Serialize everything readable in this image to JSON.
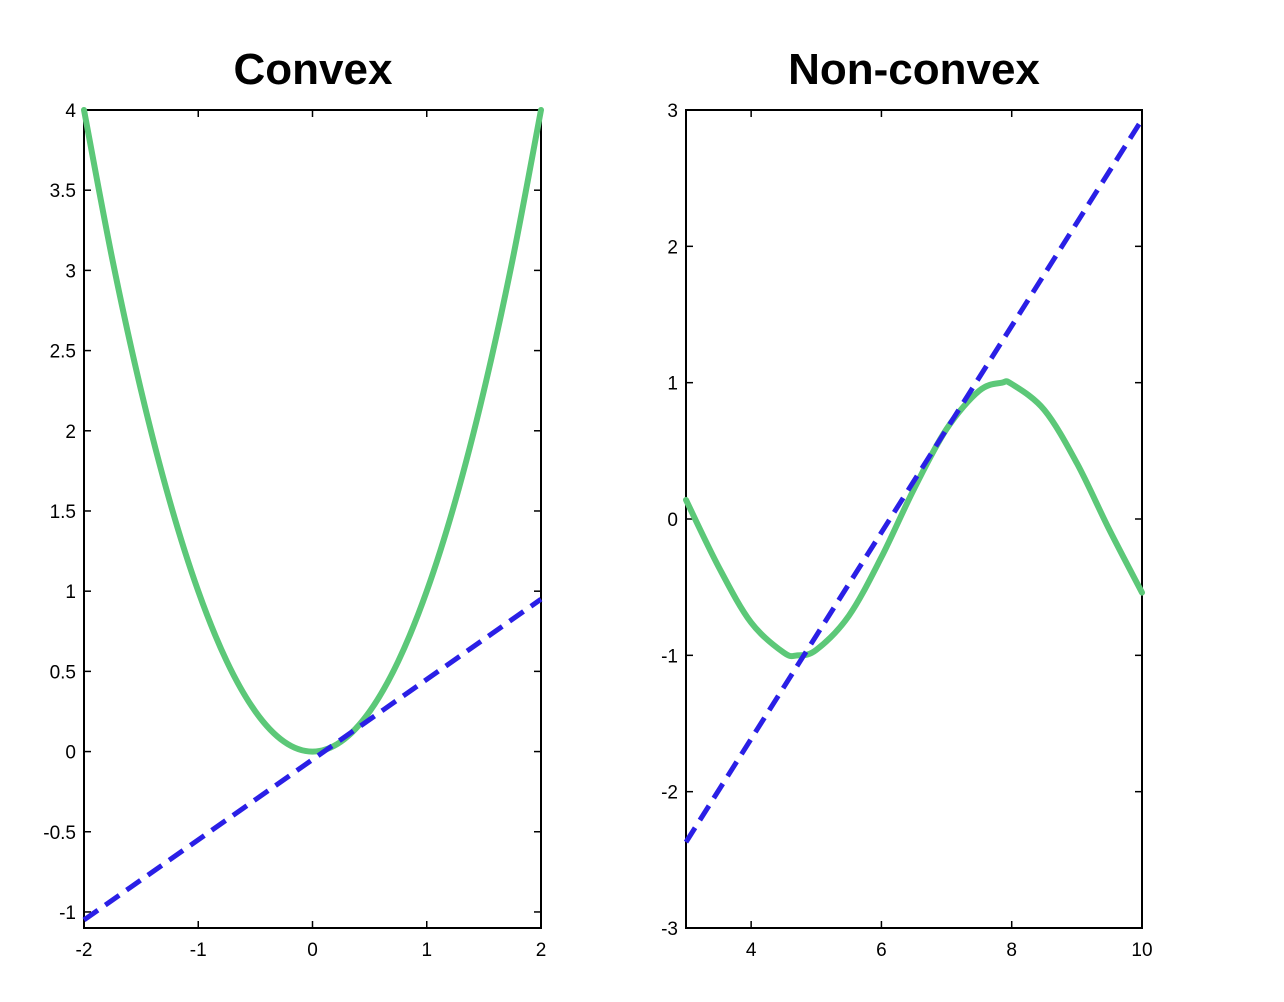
{
  "chart_data": [
    {
      "type": "line",
      "title": "Convex",
      "xlabel": "",
      "ylabel": "",
      "xlim": [
        -2,
        2
      ],
      "ylim": [
        -1.1,
        4
      ],
      "xticks": [
        -2,
        -1,
        0,
        1,
        2
      ],
      "xtick_labels": [
        "-2",
        "-1",
        "0",
        "1",
        "2"
      ],
      "yticks": [
        -1,
        -0.5,
        0,
        0.5,
        1,
        1.5,
        2,
        2.5,
        3,
        3.5,
        4
      ],
      "ytick_labels": [
        "-1",
        "-0.5",
        "0",
        "0.5",
        "1",
        "1.5",
        "2",
        "2.5",
        "3",
        "3.5",
        "4"
      ],
      "grid": false,
      "series": [
        {
          "style": "solid",
          "color": "#5cc878",
          "x": [
            -2,
            -1.75,
            -1.5,
            -1.25,
            -1,
            -0.75,
            -0.5,
            -0.25,
            0,
            0.25,
            0.5,
            0.75,
            1,
            1.25,
            1.5,
            1.75,
            2
          ],
          "y": [
            4,
            3.0625,
            2.25,
            1.5625,
            1,
            0.5625,
            0.25,
            0.0625,
            0,
            0.0625,
            0.25,
            0.5625,
            1,
            1.5625,
            2.25,
            3.0625,
            4
          ]
        },
        {
          "style": "dashed",
          "color": "#2a1fe6",
          "x": [
            -2,
            2
          ],
          "y": [
            -1.05,
            0.95
          ]
        }
      ]
    },
    {
      "type": "line",
      "title": "Non-convex",
      "xlabel": "",
      "ylabel": "",
      "xlim": [
        3,
        10
      ],
      "ylim": [
        -3,
        3
      ],
      "xticks": [
        4,
        6,
        8,
        10
      ],
      "xtick_labels": [
        "4",
        "6",
        "8",
        "10"
      ],
      "yticks": [
        -3,
        -2,
        -1,
        0,
        1,
        2,
        3
      ],
      "ytick_labels": [
        "-3",
        "-2",
        "-1",
        "0",
        "1",
        "2",
        "3"
      ],
      "grid": false,
      "series": [
        {
          "style": "solid",
          "color": "#5cc878",
          "x": [
            3,
            3.5,
            4,
            4.5,
            4.71,
            5,
            5.5,
            6,
            6.5,
            7,
            7.5,
            7.85,
            8,
            8.5,
            9,
            9.5,
            10
          ],
          "y": [
            0.14,
            -0.35,
            -0.76,
            -0.98,
            -1,
            -0.96,
            -0.71,
            -0.28,
            0.22,
            0.66,
            0.94,
            1,
            0.99,
            0.8,
            0.41,
            -0.08,
            -0.54
          ]
        },
        {
          "style": "dashed",
          "color": "#2a1fe6",
          "x": [
            3,
            10
          ],
          "y": [
            -2.37,
            2.93
          ]
        }
      ]
    }
  ]
}
